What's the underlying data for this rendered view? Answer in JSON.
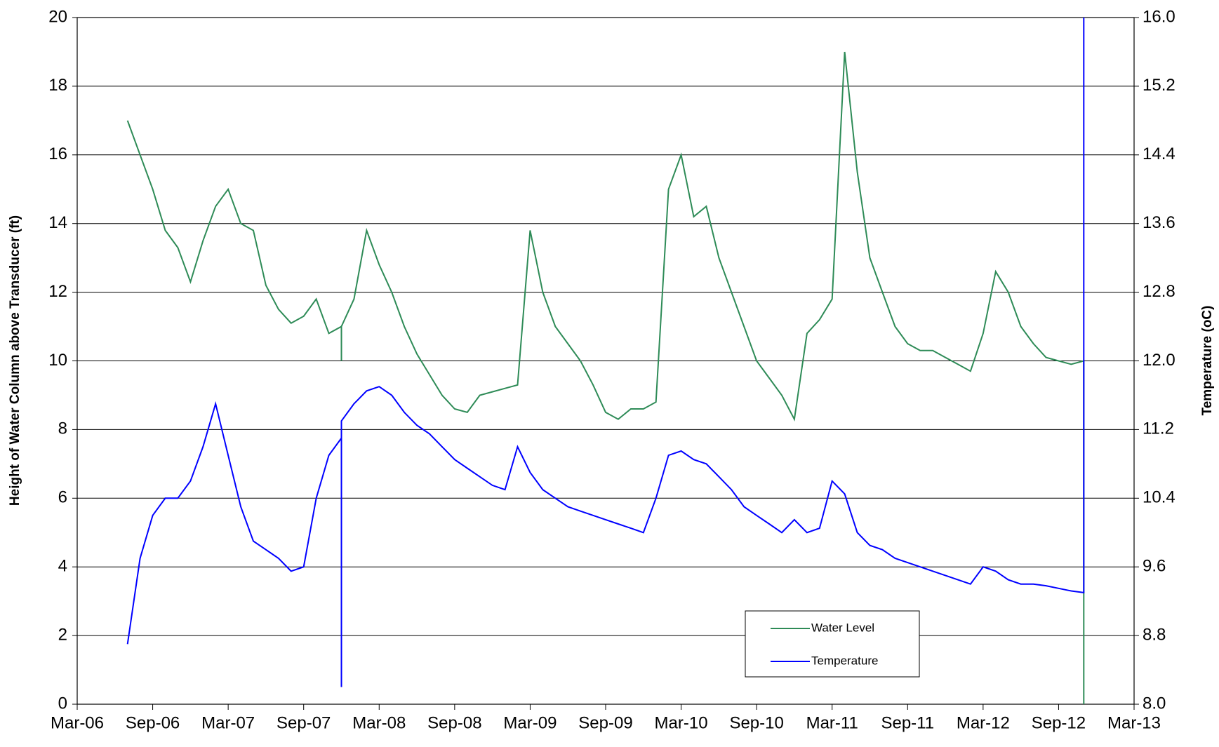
{
  "chart_data": {
    "type": "line",
    "y_label": "Height of Water Column above Transducer (ft)",
    "y2_label": "Temperature (oC)",
    "x": [
      "2006-07",
      "2006-08",
      "2006-09",
      "2006-10",
      "2006-11",
      "2006-12",
      "2007-01",
      "2007-02",
      "2007-03",
      "2007-04",
      "2007-05",
      "2007-06",
      "2007-07",
      "2007-08",
      "2007-09",
      "2007-10",
      "2007-11",
      "2007-12",
      "2007-12",
      "2007-12",
      "2008-01",
      "2008-02",
      "2008-03",
      "2008-04",
      "2008-05",
      "2008-06",
      "2008-07",
      "2008-08",
      "2008-09",
      "2008-10",
      "2008-11",
      "2008-12",
      "2009-01",
      "2009-02",
      "2009-03",
      "2009-04",
      "2009-05",
      "2009-06",
      "2009-07",
      "2009-08",
      "2009-09",
      "2009-10",
      "2009-11",
      "2009-12",
      "2010-01",
      "2010-02",
      "2010-03",
      "2010-04",
      "2010-05",
      "2010-06",
      "2010-07",
      "2010-08",
      "2010-09",
      "2010-10",
      "2010-11",
      "2010-12",
      "2011-01",
      "2011-02",
      "2011-03",
      "2011-04",
      "2011-05",
      "2011-06",
      "2011-07",
      "2011-08",
      "2011-09",
      "2011-10",
      "2011-11",
      "2011-12",
      "2012-01",
      "2012-02",
      "2012-03",
      "2012-04",
      "2012-05",
      "2012-06",
      "2012-07",
      "2012-08",
      "2012-09",
      "2012-10",
      "2012-11",
      "2012-11"
    ],
    "series": [
      {
        "name": "Water Level",
        "color": "#2e8b57",
        "values": [
          17.0,
          16.0,
          15.0,
          13.8,
          13.3,
          12.3,
          13.5,
          14.5,
          15.0,
          14.0,
          13.8,
          12.2,
          11.5,
          11.1,
          11.3,
          11.8,
          10.8,
          11.0,
          10.0,
          11.0,
          11.8,
          13.8,
          12.8,
          12.0,
          11.0,
          10.2,
          9.6,
          9.0,
          8.6,
          8.5,
          9.0,
          9.1,
          9.2,
          9.3,
          13.8,
          12.0,
          11.0,
          10.5,
          10.0,
          9.3,
          8.5,
          8.3,
          8.6,
          8.6,
          8.8,
          15.0,
          16.0,
          14.2,
          14.5,
          13.0,
          12.0,
          11.0,
          10.0,
          9.5,
          9.0,
          8.3,
          10.8,
          11.2,
          11.8,
          19.0,
          15.5,
          13.0,
          12.0,
          11.0,
          10.5,
          10.3,
          10.3,
          10.1,
          9.9,
          9.7,
          10.8,
          12.6,
          12.0,
          11.0,
          10.5,
          10.1,
          10.0,
          9.9,
          10.0,
          0
        ]
      },
      {
        "name": "Temperature",
        "color": "#0000ff",
        "axis": "y2",
        "values": [
          8.7,
          9.7,
          10.2,
          10.4,
          10.4,
          10.6,
          11.0,
          11.5,
          10.9,
          10.3,
          9.9,
          9.8,
          9.7,
          9.55,
          9.6,
          10.4,
          10.9,
          11.1,
          8.2,
          11.3,
          11.5,
          11.65,
          11.7,
          11.6,
          11.4,
          11.25,
          11.15,
          11.0,
          10.85,
          10.75,
          10.65,
          10.55,
          10.5,
          11.0,
          10.7,
          10.5,
          10.4,
          10.3,
          10.25,
          10.2,
          10.15,
          10.1,
          10.05,
          10.0,
          10.4,
          10.9,
          10.95,
          10.85,
          10.8,
          10.65,
          10.5,
          10.3,
          10.2,
          10.1,
          10.0,
          10.15,
          10.0,
          10.05,
          10.6,
          10.45,
          10.0,
          9.85,
          9.8,
          9.7,
          9.65,
          9.6,
          9.55,
          9.5,
          9.45,
          9.4,
          9.6,
          9.55,
          9.45,
          9.4,
          9.4,
          9.38,
          9.35,
          9.32,
          9.3,
          16.0
        ]
      }
    ],
    "xlim": [
      "2006-03",
      "2013-03"
    ],
    "xticks": [
      {
        "value": "2006-03",
        "label": "Mar-06"
      },
      {
        "value": "2006-09",
        "label": "Sep-06"
      },
      {
        "value": "2007-03",
        "label": "Mar-07"
      },
      {
        "value": "2007-09",
        "label": "Sep-07"
      },
      {
        "value": "2008-03",
        "label": "Mar-08"
      },
      {
        "value": "2008-09",
        "label": "Sep-08"
      },
      {
        "value": "2009-03",
        "label": "Mar-09"
      },
      {
        "value": "2009-09",
        "label": "Sep-09"
      },
      {
        "value": "2010-03",
        "label": "Mar-10"
      },
      {
        "value": "2010-09",
        "label": "Sep-10"
      },
      {
        "value": "2011-03",
        "label": "Mar-11"
      },
      {
        "value": "2011-09",
        "label": "Sep-11"
      },
      {
        "value": "2012-03",
        "label": "Mar-12"
      },
      {
        "value": "2012-09",
        "label": "Sep-12"
      },
      {
        "value": "2013-03",
        "label": "Mar-13"
      }
    ],
    "ylim": [
      0,
      20
    ],
    "yticks": [
      0,
      2,
      4,
      6,
      8,
      10,
      12,
      14,
      16,
      18,
      20
    ],
    "y2lim": [
      8,
      16
    ],
    "y2ticks": [
      {
        "value": 8,
        "label": "8.0"
      },
      {
        "value": 8.8,
        "label": "8.8"
      },
      {
        "value": 9.6,
        "label": "9.6"
      },
      {
        "value": 10.4,
        "label": "10.4"
      },
      {
        "value": 11.2,
        "label": "11.2"
      },
      {
        "value": 12,
        "label": "12.0"
      },
      {
        "value": 12.8,
        "label": "12.8"
      },
      {
        "value": 13.6,
        "label": "13.6"
      },
      {
        "value": 14.4,
        "label": "14.4"
      },
      {
        "value": 15.2,
        "label": "15.2"
      },
      {
        "value": 16,
        "label": "16.0"
      }
    ],
    "grid": true,
    "legend_position": "lower right"
  }
}
